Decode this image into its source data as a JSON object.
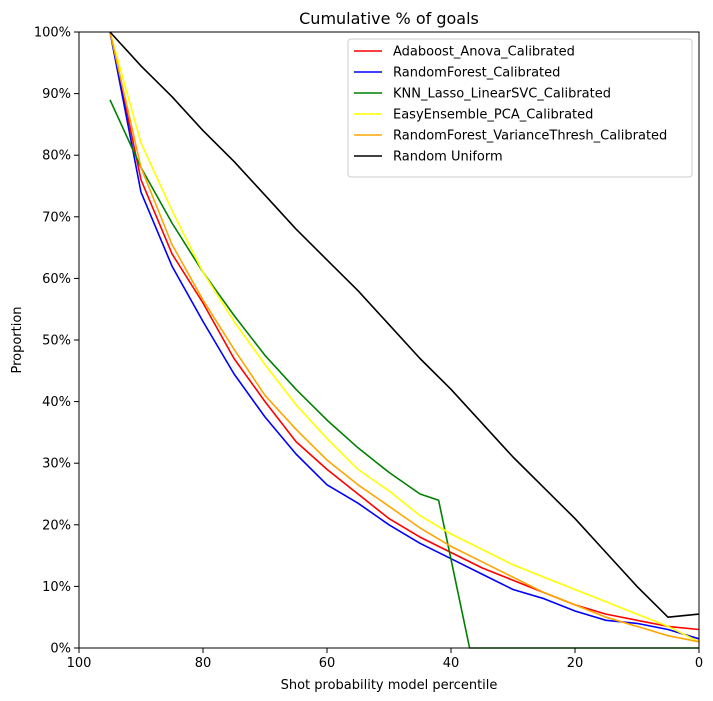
{
  "chart_data": {
    "type": "line",
    "title": "Cumulative % of goals",
    "xlabel": "Shot probability model percentile",
    "ylabel": "Proportion",
    "xlim": [
      100,
      0
    ],
    "ylim": [
      0,
      1
    ],
    "x_reversed": true,
    "xticks": [
      100,
      80,
      60,
      40,
      20,
      0
    ],
    "xtick_labels": [
      "100",
      "80",
      "60",
      "40",
      "20",
      "0"
    ],
    "yticks": [
      0,
      0.1,
      0.2,
      0.3,
      0.4,
      0.5,
      0.6,
      0.7,
      0.8,
      0.9,
      1.0
    ],
    "ytick_labels": [
      "0%",
      "10%",
      "20%",
      "30%",
      "40%",
      "50%",
      "60%",
      "70%",
      "80%",
      "90%",
      "100%"
    ],
    "grid": false,
    "legend_position": "top-right",
    "series": [
      {
        "name": "Adaboost_Anova_Calibrated",
        "color": "#ff0000",
        "x": [
          95,
          90,
          85,
          80,
          75,
          70,
          65,
          60,
          55,
          50,
          45,
          40,
          35,
          30,
          25,
          20,
          15,
          10,
          5,
          0
        ],
        "y": [
          1.0,
          0.76,
          0.64,
          0.56,
          0.47,
          0.4,
          0.335,
          0.29,
          0.25,
          0.21,
          0.18,
          0.155,
          0.13,
          0.11,
          0.09,
          0.07,
          0.055,
          0.045,
          0.035,
          0.03
        ]
      },
      {
        "name": "RandomForest_Calibrated",
        "color": "#0000ff",
        "x": [
          95,
          90,
          85,
          80,
          75,
          70,
          65,
          60,
          55,
          50,
          45,
          40,
          35,
          30,
          25,
          20,
          15,
          10,
          5,
          0
        ],
        "y": [
          1.0,
          0.74,
          0.62,
          0.53,
          0.445,
          0.375,
          0.315,
          0.265,
          0.235,
          0.2,
          0.17,
          0.145,
          0.12,
          0.095,
          0.08,
          0.06,
          0.045,
          0.04,
          0.03,
          0.015
        ]
      },
      {
        "name": "KNN_Lasso_LinearSVC_Calibrated",
        "color": "#008000",
        "x": [
          95,
          90,
          85,
          80,
          75,
          70,
          65,
          60,
          55,
          50,
          45,
          42,
          37,
          30,
          20,
          10,
          0
        ],
        "y": [
          0.89,
          0.78,
          0.69,
          0.61,
          0.54,
          0.475,
          0.42,
          0.37,
          0.325,
          0.285,
          0.25,
          0.24,
          0.0,
          0.0,
          0.0,
          0.0,
          0.0
        ]
      },
      {
        "name": "EasyEnsemble_PCA_Calibrated",
        "color": "#ffff00",
        "x": [
          95,
          90,
          85,
          80,
          75,
          70,
          65,
          60,
          55,
          50,
          45,
          40,
          35,
          30,
          25,
          20,
          15,
          10,
          5,
          0
        ],
        "y": [
          1.0,
          0.82,
          0.71,
          0.61,
          0.53,
          0.46,
          0.395,
          0.34,
          0.29,
          0.255,
          0.215,
          0.185,
          0.16,
          0.135,
          0.115,
          0.095,
          0.075,
          0.055,
          0.035,
          0.01
        ]
      },
      {
        "name": "RandomForest_VarianceThresh_Calibrated",
        "color": "#ffa500",
        "x": [
          95,
          90,
          85,
          80,
          75,
          70,
          65,
          60,
          55,
          50,
          45,
          40,
          35,
          30,
          25,
          20,
          15,
          10,
          5,
          0
        ],
        "y": [
          1.0,
          0.78,
          0.655,
          0.565,
          0.485,
          0.41,
          0.355,
          0.305,
          0.265,
          0.23,
          0.195,
          0.165,
          0.14,
          0.115,
          0.09,
          0.07,
          0.05,
          0.035,
          0.02,
          0.01
        ]
      },
      {
        "name": "Random Uniform",
        "color": "#000000",
        "x": [
          95,
          90,
          85,
          80,
          75,
          70,
          65,
          60,
          55,
          50,
          45,
          40,
          35,
          30,
          25,
          20,
          15,
          10,
          5,
          0
        ],
        "y": [
          1.0,
          0.945,
          0.895,
          0.84,
          0.79,
          0.735,
          0.68,
          0.63,
          0.58,
          0.525,
          0.47,
          0.42,
          0.365,
          0.31,
          0.26,
          0.21,
          0.155,
          0.1,
          0.05,
          0.055
        ]
      }
    ]
  }
}
